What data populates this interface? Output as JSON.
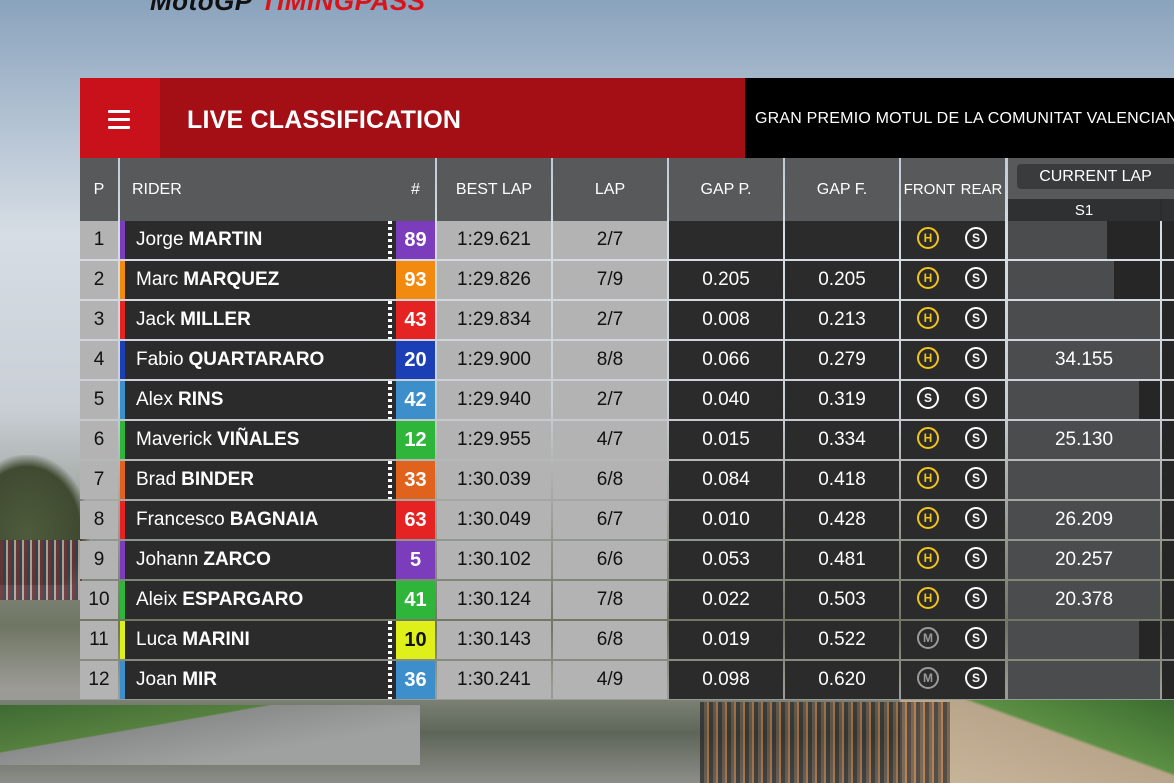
{
  "brand": {
    "part1": "MotoGP",
    "part2": "TIMINGPASS"
  },
  "header": {
    "title": "LIVE CLASSIFICATION",
    "event": "GRAN PREMIO MOTUL DE LA COMUNITAT VALENCIANA",
    "menu_icon": "hamburger-menu-icon"
  },
  "columns": {
    "p": "P",
    "rider": "RIDER",
    "num": "#",
    "best_lap": "BEST LAP",
    "lap": "LAP",
    "gap_p": "GAP P.",
    "gap_f": "GAP F.",
    "front": "FRONT",
    "rear": "REAR",
    "current_lap": "CURRENT LAP",
    "s1": "S1"
  },
  "colors": {
    "accent_red": "#c8111a",
    "title_red": "#a30f15",
    "hard": "#f2c416",
    "medium": "#9a9a9a",
    "soft": "#ffffff"
  },
  "rows": [
    {
      "pos": "1",
      "first": "Jorge",
      "last": "MARTIN",
      "num": "89",
      "color": "#7b3dbb",
      "check": true,
      "best": "1:29.621",
      "lap": "2/7",
      "gap_p": "",
      "gap_f": "",
      "front": "H",
      "rear": "S",
      "s1": "",
      "s1_fill": 0.65
    },
    {
      "pos": "2",
      "first": "Marc",
      "last": "MARQUEZ",
      "num": "93",
      "color": "#f38a10",
      "check": false,
      "best": "1:29.826",
      "lap": "7/9",
      "gap_p": "0.205",
      "gap_f": "0.205",
      "front": "H",
      "rear": "S",
      "s1": "",
      "s1_fill": 0.7
    },
    {
      "pos": "3",
      "first": "Jack",
      "last": "MILLER",
      "num": "43",
      "color": "#e52322",
      "check": true,
      "best": "1:29.834",
      "lap": "2/7",
      "gap_p": "0.008",
      "gap_f": "0.213",
      "front": "H",
      "rear": "S",
      "s1": "",
      "s1_fill": 1.0
    },
    {
      "pos": "4",
      "first": "Fabio",
      "last": "QUARTARARO",
      "num": "20",
      "color": "#1c3fb5",
      "check": false,
      "best": "1:29.900",
      "lap": "8/8",
      "gap_p": "0.066",
      "gap_f": "0.279",
      "front": "H",
      "rear": "S",
      "s1": "34.155",
      "s1_fill": 1.0
    },
    {
      "pos": "5",
      "first": "Alex",
      "last": "RINS",
      "num": "42",
      "color": "#3c8fcb",
      "check": true,
      "best": "1:29.940",
      "lap": "2/7",
      "gap_p": "0.040",
      "gap_f": "0.319",
      "front": "S",
      "rear": "S",
      "s1": "",
      "s1_fill": 0.86
    },
    {
      "pos": "6",
      "first": "Maverick",
      "last": "VIÑALES",
      "num": "12",
      "color": "#2fb53a",
      "check": false,
      "best": "1:29.955",
      "lap": "4/7",
      "gap_p": "0.015",
      "gap_f": "0.334",
      "front": "H",
      "rear": "S",
      "s1": "25.130",
      "s1_fill": 1.0
    },
    {
      "pos": "7",
      "first": "Brad",
      "last": "BINDER",
      "num": "33",
      "color": "#e0621c",
      "check": true,
      "best": "1:30.039",
      "lap": "6/8",
      "gap_p": "0.084",
      "gap_f": "0.418",
      "front": "H",
      "rear": "S",
      "s1": "",
      "s1_fill": 1.0
    },
    {
      "pos": "8",
      "first": "Francesco",
      "last": "BAGNAIA",
      "num": "63",
      "color": "#e52322",
      "check": false,
      "best": "1:30.049",
      "lap": "6/7",
      "gap_p": "0.010",
      "gap_f": "0.428",
      "front": "H",
      "rear": "S",
      "s1": "26.209",
      "s1_fill": 1.0
    },
    {
      "pos": "9",
      "first": "Johann",
      "last": "ZARCO",
      "num": "5",
      "color": "#7b3dbb",
      "check": false,
      "best": "1:30.102",
      "lap": "6/6",
      "gap_p": "0.053",
      "gap_f": "0.481",
      "front": "H",
      "rear": "S",
      "s1": "20.257",
      "s1_fill": 1.0
    },
    {
      "pos": "10",
      "first": "Aleix",
      "last": "ESPARGARO",
      "num": "41",
      "color": "#2fb53a",
      "check": false,
      "best": "1:30.124",
      "lap": "7/8",
      "gap_p": "0.022",
      "gap_f": "0.503",
      "front": "H",
      "rear": "S",
      "s1": "20.378",
      "s1_fill": 1.0
    },
    {
      "pos": "11",
      "first": "Luca",
      "last": "MARINI",
      "num": "10",
      "color": "#dfef1a",
      "check": true,
      "best": "1:30.143",
      "lap": "6/8",
      "gap_p": "0.019",
      "gap_f": "0.522",
      "front": "M",
      "rear": "S",
      "s1": "",
      "s1_fill": 0.86
    },
    {
      "pos": "12",
      "first": "Joan",
      "last": "MIR",
      "num": "36",
      "color": "#3c8fcb",
      "check": true,
      "best": "1:30.241",
      "lap": "4/9",
      "gap_p": "0.098",
      "gap_f": "0.620",
      "front": "M",
      "rear": "S",
      "s1": "",
      "s1_fill": 1.0
    }
  ]
}
